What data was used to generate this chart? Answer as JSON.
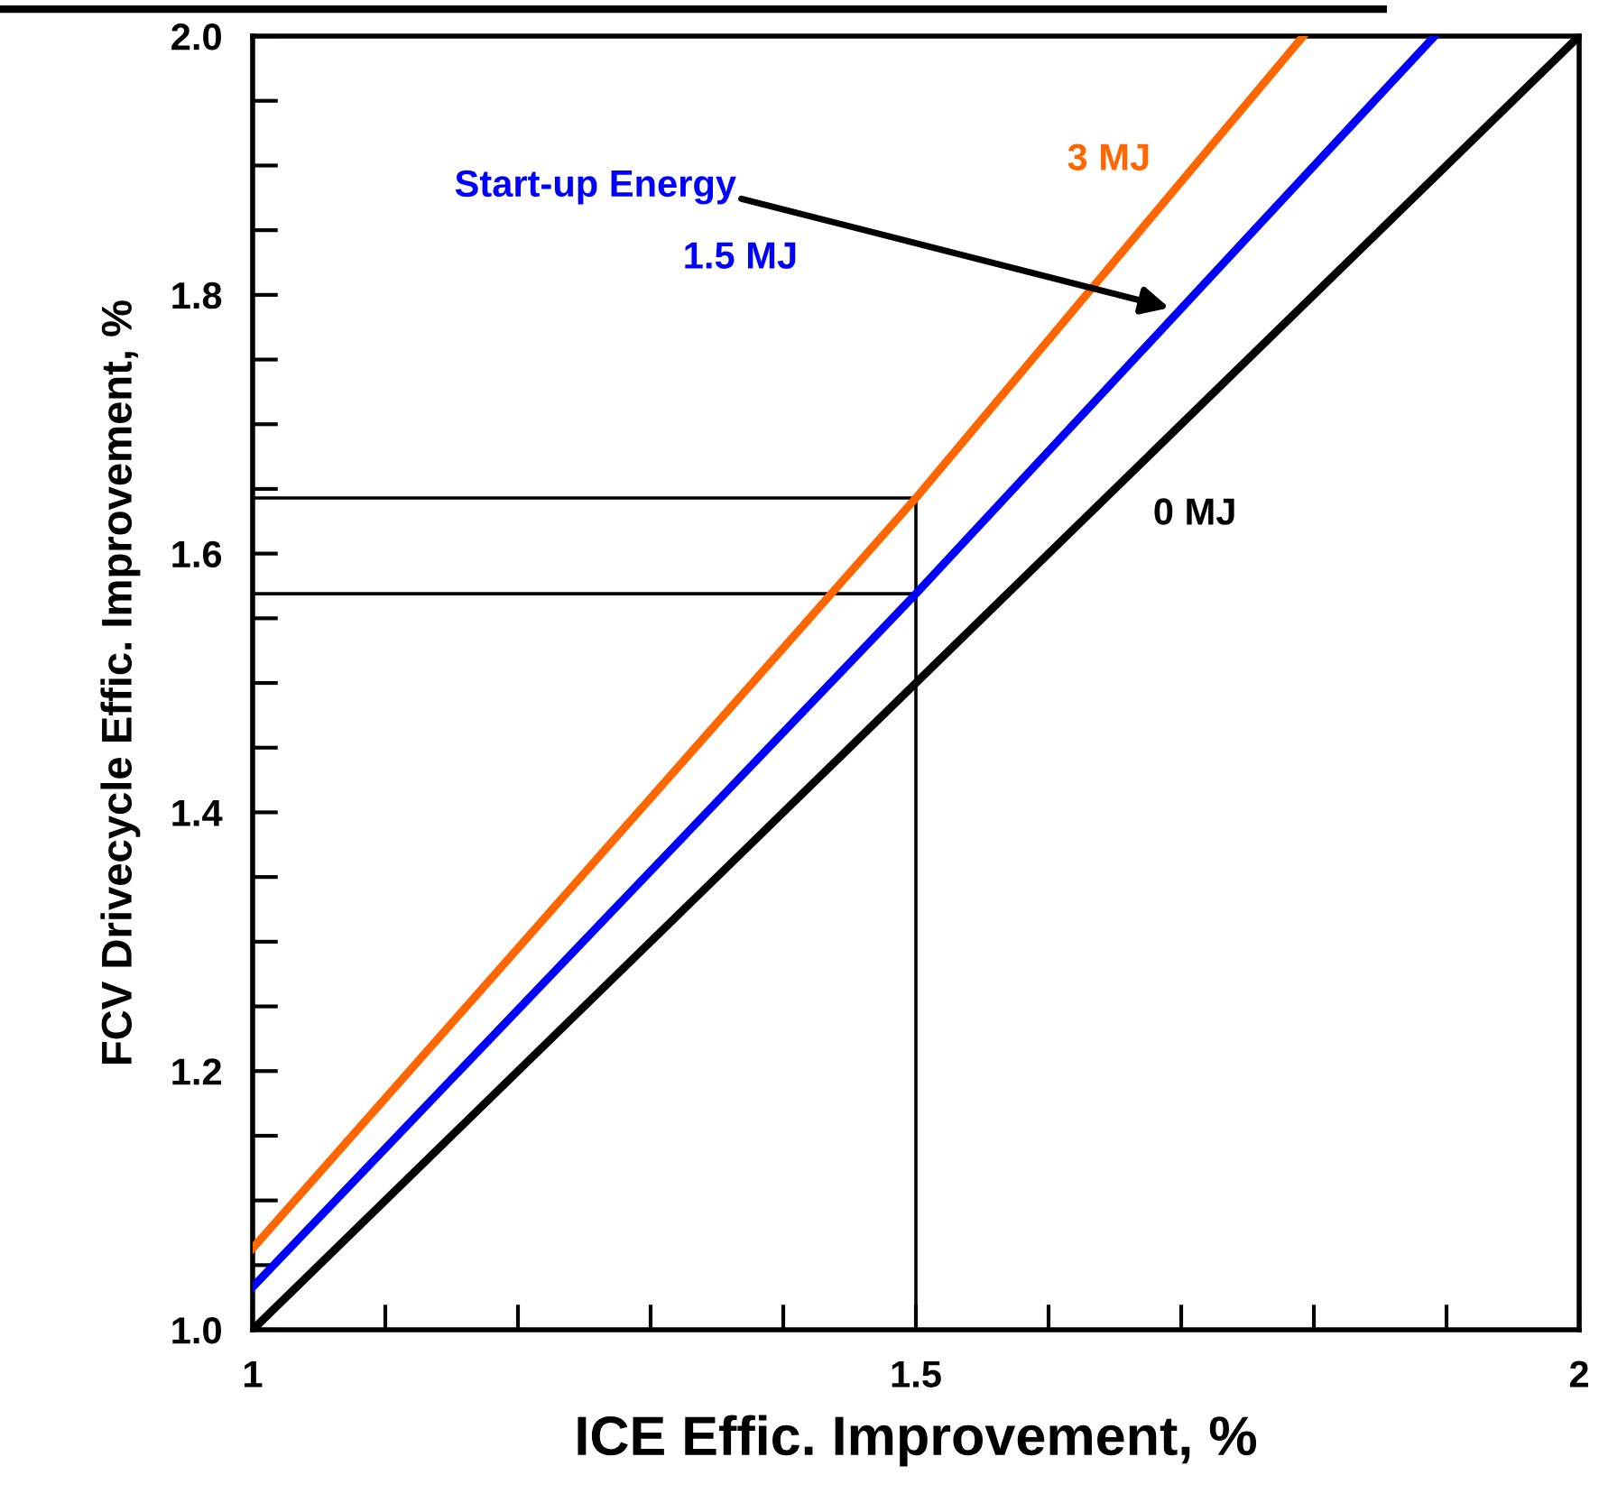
{
  "chart_data": {
    "type": "line",
    "xlabel": "ICE Effic. Improvement, %",
    "ylabel": "FCV Drivecycle Effic. Improvement, %",
    "series": [
      {
        "name": "3 MJ",
        "color": "#ff6600",
        "x": [
          1,
          1.5,
          1.792
        ],
        "values": [
          1.063,
          1.643,
          2.0
        ]
      },
      {
        "name": "1.5 MJ",
        "color": "#0000ff",
        "x": [
          1,
          1.5,
          1.891
        ],
        "values": [
          1.033,
          1.569,
          2.0
        ]
      },
      {
        "name": "0 MJ",
        "color": "#000000",
        "x": [
          1,
          2
        ],
        "values": [
          1.0,
          2.0
        ]
      },
      {
        "color": "#000000",
        "x": [
          1,
          1.5,
          1.5
        ],
        "values": [
          1.643,
          1.643,
          1.0
        ]
      },
      {
        "color": "#000000",
        "x": [
          1,
          1.5
        ],
        "values": [
          1.569,
          1.569
        ]
      }
    ],
    "annotations": [
      {
        "text": "Start-up Energy",
        "x": 1.691,
        "y": 1.79
      }
    ],
    "xlim": [
      1,
      2
    ],
    "ylim": [
      1.0,
      2.0
    ],
    "xticks": [
      1,
      {
        "value": 1.1,
        "label": null
      },
      {
        "value": 1.2,
        "label": null
      },
      {
        "value": 1.3,
        "label": null
      },
      {
        "value": 1.4,
        "label": null
      },
      1.5,
      {
        "value": 1.6,
        "label": null
      },
      {
        "value": 1.7,
        "label": null
      },
      {
        "value": 1.8,
        "label": null
      },
      {
        "value": 1.9,
        "label": null
      },
      2
    ],
    "yticks": [
      {
        "value": 1.0,
        "label": "1.0"
      },
      {
        "value": 1.05,
        "label": null
      },
      {
        "value": 1.1,
        "label": null
      },
      {
        "value": 1.15,
        "label": null
      },
      1.2,
      {
        "value": 1.25,
        "label": null
      },
      {
        "value": 1.3,
        "label": null
      },
      {
        "value": 1.35,
        "label": null
      },
      1.4,
      {
        "value": 1.45,
        "label": null
      },
      {
        "value": 1.5,
        "label": null
      },
      {
        "value": 1.55,
        "label": null
      },
      1.6,
      {
        "value": 1.65,
        "label": null
      },
      {
        "value": 1.7,
        "label": null
      },
      {
        "value": 1.75,
        "label": null
      },
      1.8,
      {
        "value": 1.85,
        "label": null
      },
      {
        "value": 1.9,
        "label": null
      },
      {
        "value": 1.95,
        "label": null
      },
      {
        "value": 2.0,
        "label": "2.0"
      }
    ],
    "grid": false,
    "legend": false
  }
}
